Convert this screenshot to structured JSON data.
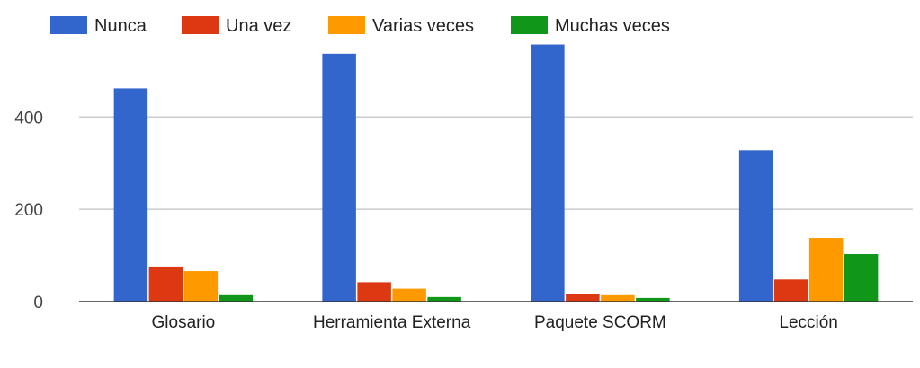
{
  "chart_data": {
    "type": "bar",
    "categories": [
      "Glosario",
      "Herramienta Externa",
      "Paquete SCORM",
      "Lección"
    ],
    "series": [
      {
        "name": "Nunca",
        "color": "#3366cc",
        "values": [
          462,
          537,
          557,
          328
        ]
      },
      {
        "name": "Una vez",
        "color": "#dc3912",
        "values": [
          76,
          42,
          17,
          48
        ]
      },
      {
        "name": "Varias veces",
        "color": "#ff9900",
        "values": [
          66,
          28,
          14,
          138
        ]
      },
      {
        "name": "Muchas veces",
        "color": "#109618",
        "values": [
          14,
          10,
          8,
          103
        ]
      }
    ],
    "yticks": [
      0,
      200,
      400
    ],
    "ylim": [
      0,
      560
    ],
    "grid": true,
    "legend_position": "top"
  }
}
